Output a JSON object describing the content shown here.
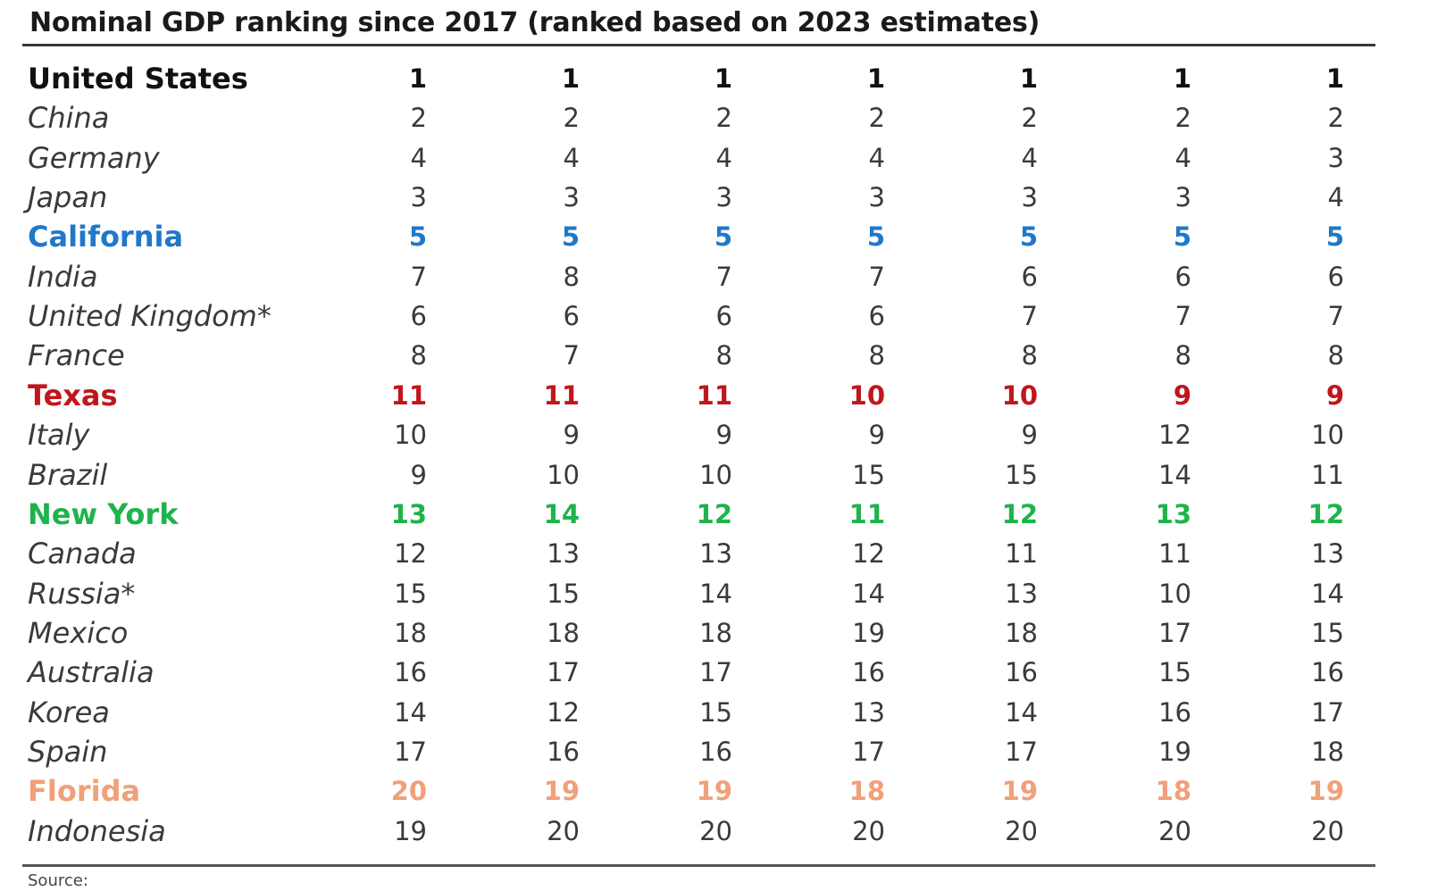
{
  "chart_data": {
    "type": "table",
    "title": "Nominal GDP ranking since 2017 (ranked based on 2023 estimates)",
    "source_label": "Source:",
    "rows": [
      {
        "name": "United States",
        "values": [
          1,
          1,
          1,
          1,
          1,
          1,
          1
        ],
        "color": "#111111",
        "bold": true
      },
      {
        "name": "China",
        "values": [
          2,
          2,
          2,
          2,
          2,
          2,
          2
        ],
        "color": "#3a3a3a",
        "bold": false
      },
      {
        "name": "Germany",
        "values": [
          4,
          4,
          4,
          4,
          4,
          4,
          3
        ],
        "color": "#3a3a3a",
        "bold": false
      },
      {
        "name": "Japan",
        "values": [
          3,
          3,
          3,
          3,
          3,
          3,
          4
        ],
        "color": "#3a3a3a",
        "bold": false
      },
      {
        "name": "California",
        "values": [
          5,
          5,
          5,
          5,
          5,
          5,
          5
        ],
        "color": "#1f78c8",
        "bold": true
      },
      {
        "name": "India",
        "values": [
          7,
          8,
          7,
          7,
          6,
          6,
          6
        ],
        "color": "#3a3a3a",
        "bold": false
      },
      {
        "name": "United Kingdom*",
        "values": [
          6,
          6,
          6,
          6,
          7,
          7,
          7
        ],
        "color": "#3a3a3a",
        "bold": false
      },
      {
        "name": "France",
        "values": [
          8,
          7,
          8,
          8,
          8,
          8,
          8
        ],
        "color": "#3a3a3a",
        "bold": false
      },
      {
        "name": "Texas",
        "values": [
          11,
          11,
          11,
          10,
          10,
          9,
          9
        ],
        "color": "#c0161c",
        "bold": true
      },
      {
        "name": "Italy",
        "values": [
          10,
          9,
          9,
          9,
          9,
          12,
          10
        ],
        "color": "#3a3a3a",
        "bold": false
      },
      {
        "name": "Brazil",
        "values": [
          9,
          10,
          10,
          15,
          15,
          14,
          11
        ],
        "color": "#3a3a3a",
        "bold": false
      },
      {
        "name": "New York",
        "values": [
          13,
          14,
          12,
          11,
          12,
          13,
          12
        ],
        "color": "#1fb34c",
        "bold": true
      },
      {
        "name": "Canada",
        "values": [
          12,
          13,
          13,
          12,
          11,
          11,
          13
        ],
        "color": "#3a3a3a",
        "bold": false
      },
      {
        "name": "Russia*",
        "values": [
          15,
          15,
          14,
          14,
          13,
          10,
          14
        ],
        "color": "#3a3a3a",
        "bold": false
      },
      {
        "name": "Mexico",
        "values": [
          18,
          18,
          18,
          19,
          18,
          17,
          15
        ],
        "color": "#3a3a3a",
        "bold": false
      },
      {
        "name": "Australia",
        "values": [
          16,
          17,
          17,
          16,
          16,
          15,
          16
        ],
        "color": "#3a3a3a",
        "bold": false
      },
      {
        "name": "Korea",
        "values": [
          14,
          12,
          15,
          13,
          14,
          16,
          17
        ],
        "color": "#3a3a3a",
        "bold": false
      },
      {
        "name": "Spain",
        "values": [
          17,
          16,
          16,
          17,
          17,
          19,
          18
        ],
        "color": "#3a3a3a",
        "bold": false
      },
      {
        "name": "Florida",
        "values": [
          20,
          19,
          19,
          18,
          19,
          18,
          19
        ],
        "color": "#f0a07a",
        "bold": true
      },
      {
        "name": "Indonesia",
        "values": [
          19,
          20,
          20,
          20,
          20,
          20,
          20
        ],
        "color": "#3a3a3a",
        "bold": false
      }
    ]
  }
}
